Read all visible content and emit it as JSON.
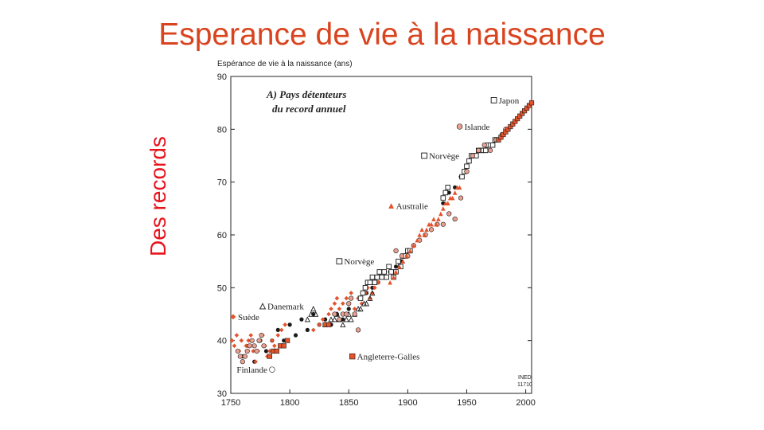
{
  "slide": {
    "title": "Esperance de vie à la naissance",
    "side_label": "Des records"
  },
  "chart_data": {
    "type": "scatter",
    "ylabel": "Espérance de vie à la naissance (ans)",
    "panel_title_line1": "A) Pays détenteurs",
    "panel_title_line2": "du record annuel",
    "source_line1": "INED",
    "source_line2": "11710",
    "xlim": [
      1750,
      2005
    ],
    "ylim": [
      30,
      90
    ],
    "xticks": [
      1750,
      1800,
      1850,
      1900,
      1950,
      2000
    ],
    "yticks": [
      30,
      40,
      50,
      60,
      70,
      80,
      90
    ],
    "grid": false,
    "colors": {
      "red": "#e2532c",
      "black": "#1a1a1a",
      "salmon": "#e8a090"
    },
    "series": [
      {
        "name": "Suède",
        "marker": "diamond",
        "points": [
          [
            1751,
            40
          ],
          [
            1753,
            39
          ],
          [
            1755,
            41
          ],
          [
            1757,
            38
          ],
          [
            1759,
            40
          ],
          [
            1761,
            37
          ],
          [
            1763,
            39
          ],
          [
            1765,
            40
          ],
          [
            1767,
            41
          ],
          [
            1769,
            38
          ],
          [
            1771,
            36
          ],
          [
            1773,
            38
          ],
          [
            1775,
            40
          ],
          [
            1777,
            41
          ],
          [
            1779,
            39
          ],
          [
            1781,
            37
          ],
          [
            1783,
            38
          ],
          [
            1785,
            40
          ],
          [
            1787,
            39
          ],
          [
            1790,
            41
          ],
          [
            1793,
            42
          ],
          [
            1796,
            43
          ],
          [
            1820,
            42
          ],
          [
            1825,
            43
          ],
          [
            1828,
            44
          ],
          [
            1830,
            43
          ],
          [
            1833,
            45
          ],
          [
            1835,
            46
          ],
          [
            1838,
            47
          ],
          [
            1840,
            48
          ],
          [
            1842,
            46
          ],
          [
            1845,
            47
          ],
          [
            1848,
            48
          ],
          [
            1850,
            47
          ],
          [
            1852,
            49
          ],
          [
            1855,
            46
          ],
          [
            1858,
            48
          ],
          [
            1861,
            47
          ],
          [
            1864,
            49
          ],
          [
            1866,
            50
          ],
          [
            1868,
            48
          ],
          [
            1870,
            49
          ],
          [
            1872,
            50
          ],
          [
            1875,
            51
          ]
        ]
      },
      {
        "name": "Danemark",
        "marker": "triangle",
        "points": [
          [
            1815,
            44
          ],
          [
            1818,
            45
          ],
          [
            1820,
            46
          ],
          [
            1822,
            45
          ],
          [
            1830,
            43
          ],
          [
            1835,
            44
          ],
          [
            1838,
            44
          ],
          [
            1840,
            45
          ],
          [
            1842,
            44
          ],
          [
            1845,
            43
          ],
          [
            1848,
            44
          ],
          [
            1850,
            45
          ],
          [
            1852,
            44
          ],
          [
            1855,
            45
          ],
          [
            1858,
            46
          ],
          [
            1860,
            46
          ],
          [
            1863,
            47
          ],
          [
            1865,
            47
          ],
          [
            1868,
            48
          ],
          [
            1870,
            49
          ]
        ]
      },
      {
        "name": "Norvège",
        "marker": "square",
        "points": [
          [
            1860,
            48
          ],
          [
            1862,
            49
          ],
          [
            1864,
            50
          ],
          [
            1866,
            51
          ],
          [
            1868,
            51
          ],
          [
            1870,
            52
          ],
          [
            1872,
            51
          ],
          [
            1874,
            52
          ],
          [
            1876,
            53
          ],
          [
            1878,
            52
          ],
          [
            1880,
            53
          ],
          [
            1882,
            52
          ],
          [
            1884,
            54
          ],
          [
            1886,
            53
          ],
          [
            1888,
            52
          ],
          [
            1890,
            53
          ],
          [
            1892,
            55
          ],
          [
            1894,
            54
          ],
          [
            1896,
            56
          ],
          [
            1898,
            56
          ],
          [
            1900,
            57
          ],
          [
            1902,
            57
          ],
          [
            1930,
            67
          ],
          [
            1932,
            68
          ],
          [
            1934,
            69
          ],
          [
            1946,
            71
          ],
          [
            1948,
            72
          ],
          [
            1950,
            73
          ],
          [
            1952,
            74
          ],
          [
            1954,
            75
          ],
          [
            1956,
            75
          ],
          [
            1958,
            75
          ],
          [
            1960,
            76
          ],
          [
            1962,
            76
          ],
          [
            1964,
            76
          ],
          [
            1966,
            76
          ],
          [
            1968,
            77
          ],
          [
            1970,
            77
          ],
          [
            1972,
            77
          ],
          [
            1974,
            78
          ],
          [
            1976,
            78
          ]
        ]
      },
      {
        "name": "Islande",
        "marker": "circle",
        "points": [
          [
            1838,
            45
          ],
          [
            1842,
            44
          ],
          [
            1845,
            45
          ],
          [
            1848,
            45
          ],
          [
            1850,
            47
          ],
          [
            1852,
            48
          ],
          [
            1855,
            45
          ],
          [
            1858,
            42
          ],
          [
            1890,
            57
          ],
          [
            1895,
            56
          ],
          [
            1900,
            56
          ],
          [
            1905,
            58
          ],
          [
            1910,
            59
          ],
          [
            1915,
            60
          ],
          [
            1920,
            61
          ],
          [
            1925,
            62
          ],
          [
            1930,
            62
          ],
          [
            1935,
            64
          ],
          [
            1940,
            63
          ],
          [
            1945,
            67
          ],
          [
            1950,
            72
          ],
          [
            1955,
            75
          ],
          [
            1960,
            76
          ],
          [
            1965,
            77
          ],
          [
            1970,
            76
          ],
          [
            1975,
            78
          ],
          [
            1980,
            79
          ],
          [
            1983,
            80
          ]
        ]
      },
      {
        "name": "Australie",
        "marker": "triangle-filled",
        "points": [
          [
            1885,
            51
          ],
          [
            1888,
            52
          ],
          [
            1890,
            53
          ],
          [
            1893,
            54
          ],
          [
            1896,
            55
          ],
          [
            1899,
            56
          ],
          [
            1902,
            57
          ],
          [
            1905,
            58
          ],
          [
            1908,
            59
          ],
          [
            1910,
            60
          ],
          [
            1912,
            61
          ],
          [
            1914,
            60
          ],
          [
            1916,
            61
          ],
          [
            1918,
            62
          ],
          [
            1920,
            62
          ],
          [
            1922,
            63
          ],
          [
            1924,
            62
          ],
          [
            1926,
            63
          ],
          [
            1928,
            64
          ],
          [
            1930,
            65
          ],
          [
            1932,
            66
          ],
          [
            1934,
            66
          ],
          [
            1936,
            67
          ],
          [
            1938,
            67
          ],
          [
            1940,
            68
          ],
          [
            1942,
            69
          ],
          [
            1944,
            69
          ]
        ]
      },
      {
        "name": "Japon",
        "marker": "square-filled",
        "points": [
          [
            1977,
            78
          ],
          [
            1979,
            78.5
          ],
          [
            1981,
            79
          ],
          [
            1983,
            79.5
          ],
          [
            1985,
            80
          ],
          [
            1987,
            80.5
          ],
          [
            1989,
            81
          ],
          [
            1991,
            81.5
          ],
          [
            1993,
            82
          ],
          [
            1995,
            82.5
          ],
          [
            1997,
            83
          ],
          [
            1999,
            83.5
          ],
          [
            2001,
            84
          ],
          [
            2003,
            84.5
          ],
          [
            2005,
            85
          ]
        ]
      },
      {
        "name": "Angleterre-Galles",
        "marker": "square-filled",
        "points": [
          [
            1783,
            37
          ],
          [
            1786,
            38
          ],
          [
            1789,
            38
          ],
          [
            1792,
            39
          ],
          [
            1795,
            39
          ],
          [
            1798,
            40
          ],
          [
            1830,
            43
          ],
          [
            1833,
            43
          ]
        ]
      },
      {
        "name": "Finlande",
        "marker": "circle",
        "points": [
          [
            1756,
            38
          ],
          [
            1758,
            37
          ],
          [
            1760,
            36
          ],
          [
            1762,
            37
          ],
          [
            1764,
            38
          ],
          [
            1766,
            39
          ],
          [
            1768,
            40
          ],
          [
            1770,
            39
          ],
          [
            1772,
            38
          ],
          [
            1774,
            40
          ],
          [
            1776,
            41
          ],
          [
            1778,
            39
          ]
        ]
      }
    ],
    "black_band": [
      [
        1760,
        37
      ],
      [
        1765,
        39
      ],
      [
        1770,
        36
      ],
      [
        1775,
        40
      ],
      [
        1780,
        38
      ],
      [
        1785,
        40
      ],
      [
        1790,
        42
      ],
      [
        1795,
        40
      ],
      [
        1800,
        43
      ],
      [
        1805,
        41
      ],
      [
        1810,
        44
      ],
      [
        1815,
        42
      ],
      [
        1820,
        45
      ],
      [
        1825,
        43
      ],
      [
        1830,
        44
      ],
      [
        1835,
        43
      ],
      [
        1840,
        45
      ],
      [
        1845,
        44
      ],
      [
        1850,
        46
      ],
      [
        1855,
        45
      ],
      [
        1860,
        48
      ],
      [
        1865,
        49
      ],
      [
        1870,
        50
      ],
      [
        1875,
        51
      ],
      [
        1880,
        52
      ],
      [
        1885,
        53
      ],
      [
        1890,
        54
      ],
      [
        1895,
        55
      ],
      [
        1900,
        56
      ],
      [
        1905,
        58
      ],
      [
        1910,
        59
      ],
      [
        1915,
        60
      ],
      [
        1920,
        61
      ],
      [
        1925,
        62
      ],
      [
        1930,
        66
      ],
      [
        1935,
        68
      ],
      [
        1940,
        69
      ],
      [
        1945,
        71
      ],
      [
        1950,
        73
      ],
      [
        1955,
        75
      ],
      [
        1960,
        76
      ],
      [
        1965,
        76
      ],
      [
        1970,
        77
      ],
      [
        1975,
        78
      ]
    ],
    "annotations": [
      {
        "label": "Suède",
        "x": 1752,
        "y": 44.5,
        "marker": "diamond"
      },
      {
        "label": "Danemark",
        "x": 1777,
        "y": 46.5,
        "marker": "triangle"
      },
      {
        "label": "Norvège",
        "x": 1842,
        "y": 55,
        "marker": "square"
      },
      {
        "label": "Norvège",
        "x": 1914,
        "y": 75,
        "marker": "square"
      },
      {
        "label": "Australie",
        "x": 1886,
        "y": 65.5,
        "marker": "triangle-filled"
      },
      {
        "label": "Islande",
        "x": 1944,
        "y": 80.5,
        "marker": "circle"
      },
      {
        "label": "Japon",
        "x": 1973,
        "y": 85.5,
        "marker": "square"
      },
      {
        "label": "Angleterre-Galles",
        "x": 1853,
        "y": 37,
        "marker": "square-filled"
      },
      {
        "label": "Finlande",
        "x": 1785,
        "y": 34.5,
        "marker": "circle"
      }
    ]
  }
}
